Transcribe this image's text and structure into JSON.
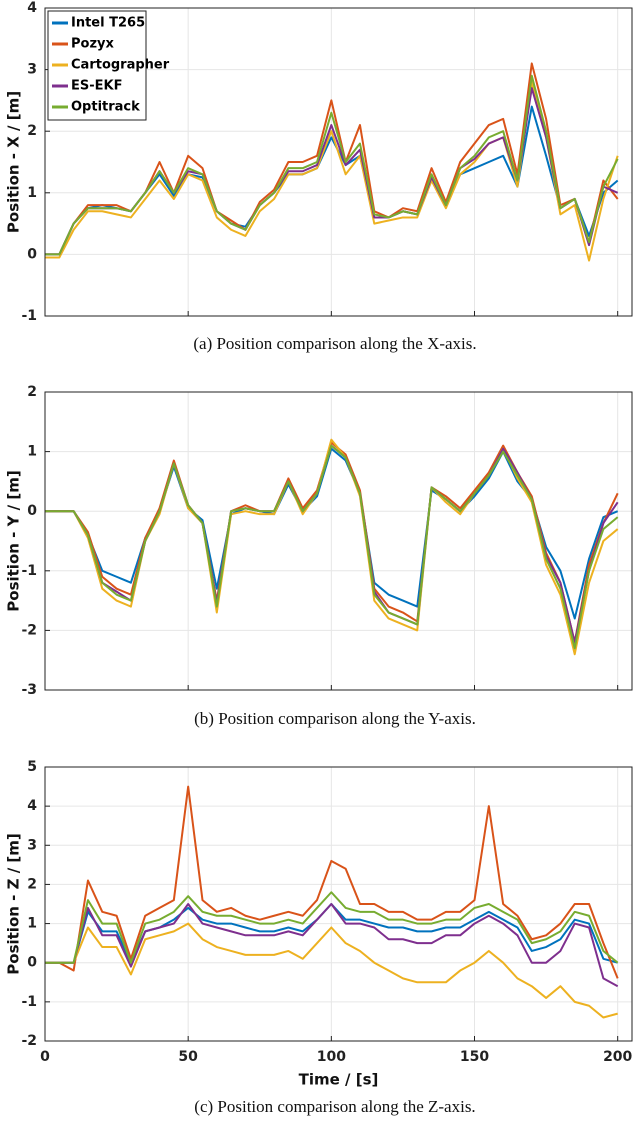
{
  "chart_data": [
    {
      "type": "line",
      "caption": "(a) Position comparison along the X-axis.",
      "ylabel": "Position - X / [m]",
      "x": [
        0,
        5,
        10,
        15,
        20,
        25,
        30,
        35,
        40,
        45,
        50,
        55,
        60,
        65,
        70,
        75,
        80,
        85,
        90,
        95,
        100,
        105,
        110,
        115,
        120,
        125,
        130,
        135,
        140,
        145,
        150,
        155,
        160,
        165,
        170,
        175,
        180,
        185,
        190,
        195,
        200
      ],
      "xlim": [
        0,
        205
      ],
      "xticks": [
        0,
        50,
        100,
        150,
        200
      ],
      "show_xtick_labels": false,
      "ylim": [
        -1,
        4
      ],
      "yticks": [
        -1,
        0,
        1,
        2,
        3,
        4
      ],
      "grid": true,
      "legend": "upper left",
      "series": [
        {
          "name": "Intel T265",
          "color": "#0072BD",
          "values": [
            0,
            0,
            0.5,
            0.75,
            0.8,
            0.75,
            0.7,
            1.0,
            1.3,
            0.95,
            1.3,
            1.25,
            0.7,
            0.5,
            0.45,
            0.8,
            1.0,
            1.3,
            1.3,
            1.4,
            1.9,
            1.45,
            1.6,
            0.6,
            0.6,
            0.7,
            0.65,
            1.2,
            0.8,
            1.3,
            1.4,
            1.5,
            1.6,
            1.1,
            2.4,
            1.6,
            0.75,
            0.9,
            0.3,
            1.0,
            1.2
          ]
        },
        {
          "name": "Pozyx",
          "color": "#D95319",
          "values": [
            0,
            0,
            0.5,
            0.8,
            0.8,
            0.8,
            0.7,
            1.0,
            1.5,
            1.0,
            1.6,
            1.4,
            0.7,
            0.55,
            0.4,
            0.85,
            1.05,
            1.5,
            1.5,
            1.6,
            2.5,
            1.5,
            2.1,
            0.7,
            0.6,
            0.75,
            0.7,
            1.4,
            0.85,
            1.5,
            1.8,
            2.1,
            2.2,
            1.3,
            3.1,
            2.2,
            0.8,
            0.9,
            0.2,
            1.2,
            0.9
          ]
        },
        {
          "name": "Cartographer",
          "color": "#EDB120",
          "values": [
            -0.05,
            -0.05,
            0.4,
            0.7,
            0.7,
            0.65,
            0.6,
            0.9,
            1.2,
            0.9,
            1.3,
            1.2,
            0.6,
            0.4,
            0.3,
            0.7,
            0.9,
            1.3,
            1.3,
            1.4,
            2.0,
            1.3,
            1.6,
            0.5,
            0.55,
            0.6,
            0.6,
            1.2,
            0.75,
            1.3,
            1.5,
            1.8,
            1.9,
            1.1,
            2.8,
            1.9,
            0.65,
            0.8,
            -0.1,
            0.9,
            1.6
          ]
        },
        {
          "name": "ES-EKF",
          "color": "#7E2F8E",
          "values": [
            0,
            0,
            0.5,
            0.75,
            0.75,
            0.75,
            0.7,
            1.0,
            1.35,
            1.0,
            1.35,
            1.3,
            0.7,
            0.5,
            0.4,
            0.8,
            1.0,
            1.35,
            1.35,
            1.45,
            2.1,
            1.45,
            1.7,
            0.6,
            0.6,
            0.7,
            0.65,
            1.25,
            0.8,
            1.4,
            1.55,
            1.8,
            1.9,
            1.2,
            2.7,
            1.9,
            0.75,
            0.9,
            0.15,
            1.1,
            1.0
          ]
        },
        {
          "name": "Optitrack",
          "color": "#77AC30",
          "values": [
            0,
            0,
            0.5,
            0.75,
            0.75,
            0.75,
            0.7,
            1.0,
            1.35,
            1.0,
            1.4,
            1.3,
            0.7,
            0.5,
            0.4,
            0.8,
            1.0,
            1.4,
            1.4,
            1.5,
            2.3,
            1.5,
            1.8,
            0.65,
            0.6,
            0.7,
            0.65,
            1.3,
            0.8,
            1.4,
            1.6,
            1.9,
            2.0,
            1.2,
            2.9,
            2.0,
            0.75,
            0.9,
            0.2,
            1.1,
            1.55
          ]
        }
      ]
    },
    {
      "type": "line",
      "caption": "(b) Position comparison along the Y-axis.",
      "ylabel": "Position - Y / [m]",
      "x": [
        0,
        5,
        10,
        15,
        20,
        25,
        30,
        35,
        40,
        45,
        50,
        55,
        60,
        65,
        70,
        75,
        80,
        85,
        90,
        95,
        100,
        105,
        110,
        115,
        120,
        125,
        130,
        135,
        140,
        145,
        150,
        155,
        160,
        165,
        170,
        175,
        180,
        185,
        190,
        195,
        200
      ],
      "xlim": [
        0,
        205
      ],
      "xticks": [
        0,
        50,
        100,
        150,
        200
      ],
      "show_xtick_labels": false,
      "ylim": [
        -3,
        2
      ],
      "yticks": [
        -3,
        -2,
        -1,
        0,
        1,
        2
      ],
      "grid": true,
      "series": [
        {
          "name": "Intel T265",
          "color": "#0072BD",
          "values": [
            0,
            0,
            0,
            -0.4,
            -1.0,
            -1.1,
            -1.2,
            -0.45,
            0.0,
            0.75,
            0.05,
            -0.15,
            -1.3,
            -0.05,
            0.05,
            0.0,
            -0.05,
            0.45,
            0.0,
            0.25,
            1.05,
            0.85,
            0.3,
            -1.2,
            -1.4,
            -1.5,
            -1.6,
            0.35,
            0.2,
            0.0,
            0.25,
            0.55,
            1.0,
            0.5,
            0.2,
            -0.6,
            -1.0,
            -1.8,
            -0.8,
            -0.1,
            0.0
          ]
        },
        {
          "name": "Pozyx",
          "color": "#D95319",
          "values": [
            0,
            0,
            0,
            -0.35,
            -1.1,
            -1.3,
            -1.4,
            -0.45,
            0.05,
            0.85,
            0.1,
            -0.2,
            -1.5,
            0.0,
            0.1,
            0.0,
            0.0,
            0.55,
            0.05,
            0.35,
            1.15,
            0.95,
            0.35,
            -1.3,
            -1.6,
            -1.7,
            -1.85,
            0.4,
            0.25,
            0.05,
            0.35,
            0.65,
            1.1,
            0.65,
            0.25,
            -0.7,
            -1.2,
            -2.2,
            -0.9,
            -0.2,
            0.3
          ]
        },
        {
          "name": "Cartographer",
          "color": "#EDB120",
          "values": [
            0,
            0,
            0,
            -0.45,
            -1.3,
            -1.5,
            -1.6,
            -0.5,
            -0.05,
            0.8,
            0.05,
            -0.2,
            -1.7,
            -0.05,
            0.0,
            -0.05,
            -0.05,
            0.5,
            -0.05,
            0.3,
            1.2,
            0.9,
            0.25,
            -1.5,
            -1.8,
            -1.9,
            -2.0,
            0.4,
            0.15,
            -0.05,
            0.3,
            0.6,
            1.05,
            0.55,
            0.15,
            -0.9,
            -1.4,
            -2.4,
            -1.2,
            -0.5,
            -0.3
          ]
        },
        {
          "name": "ES-EKF",
          "color": "#7E2F8E",
          "values": [
            0,
            0,
            0,
            -0.4,
            -1.2,
            -1.35,
            -1.5,
            -0.5,
            0.0,
            0.8,
            0.1,
            -0.2,
            -1.55,
            0.0,
            0.05,
            0.0,
            0.0,
            0.5,
            0.0,
            0.3,
            1.1,
            0.9,
            0.3,
            -1.35,
            -1.7,
            -1.8,
            -1.9,
            0.4,
            0.2,
            0.0,
            0.3,
            0.6,
            1.05,
            0.65,
            0.2,
            -0.75,
            -1.2,
            -2.2,
            -1.0,
            -0.2,
            0.15
          ]
        },
        {
          "name": "Optitrack",
          "color": "#77AC30",
          "values": [
            0,
            0,
            0,
            -0.4,
            -1.2,
            -1.4,
            -1.5,
            -0.5,
            0.0,
            0.8,
            0.1,
            -0.2,
            -1.6,
            0.0,
            0.05,
            0.0,
            0.0,
            0.5,
            0.0,
            0.3,
            1.1,
            0.9,
            0.3,
            -1.4,
            -1.7,
            -1.8,
            -1.9,
            0.4,
            0.2,
            0.0,
            0.3,
            0.6,
            1.0,
            0.6,
            0.2,
            -0.8,
            -1.3,
            -2.3,
            -1.0,
            -0.3,
            -0.1
          ]
        }
      ]
    },
    {
      "type": "line",
      "caption": "(c) Position comparison along the Z-axis.",
      "ylabel": "Position - Z / [m]",
      "xlabel": "Time / [s]",
      "x": [
        0,
        5,
        10,
        15,
        20,
        25,
        30,
        35,
        40,
        45,
        50,
        55,
        60,
        65,
        70,
        75,
        80,
        85,
        90,
        95,
        100,
        105,
        110,
        115,
        120,
        125,
        130,
        135,
        140,
        145,
        150,
        155,
        160,
        165,
        170,
        175,
        180,
        185,
        190,
        195,
        200
      ],
      "xlim": [
        0,
        205
      ],
      "xticks": [
        0,
        50,
        100,
        150,
        200
      ],
      "show_xtick_labels": true,
      "ylim": [
        -2,
        5
      ],
      "yticks": [
        -2,
        -1,
        0,
        1,
        2,
        3,
        4,
        5
      ],
      "grid": true,
      "series": [
        {
          "name": "Intel T265",
          "color": "#0072BD",
          "values": [
            0,
            0,
            0,
            1.3,
            0.8,
            0.8,
            0.0,
            0.8,
            0.9,
            1.1,
            1.4,
            1.1,
            1.0,
            1.0,
            0.9,
            0.8,
            0.8,
            0.9,
            0.8,
            1.1,
            1.5,
            1.1,
            1.1,
            1.0,
            0.9,
            0.9,
            0.8,
            0.8,
            0.9,
            0.9,
            1.1,
            1.3,
            1.1,
            0.9,
            0.3,
            0.4,
            0.6,
            1.1,
            1.0,
            0.1,
            0.0
          ]
        },
        {
          "name": "Pozyx",
          "color": "#D95319",
          "values": [
            0,
            0,
            -0.2,
            2.1,
            1.3,
            1.2,
            0.1,
            1.2,
            1.4,
            1.6,
            4.5,
            1.6,
            1.3,
            1.4,
            1.2,
            1.1,
            1.2,
            1.3,
            1.2,
            1.6,
            2.6,
            2.4,
            1.5,
            1.5,
            1.3,
            1.3,
            1.1,
            1.1,
            1.3,
            1.3,
            1.6,
            4.0,
            1.5,
            1.2,
            0.6,
            0.7,
            1.0,
            1.5,
            1.5,
            0.5,
            -0.4
          ]
        },
        {
          "name": "Cartographer",
          "color": "#EDB120",
          "values": [
            0,
            0,
            0,
            0.9,
            0.4,
            0.4,
            -0.3,
            0.6,
            0.7,
            0.8,
            1.0,
            0.6,
            0.4,
            0.3,
            0.2,
            0.2,
            0.2,
            0.3,
            0.1,
            0.5,
            0.9,
            0.5,
            0.3,
            0.0,
            -0.2,
            -0.4,
            -0.5,
            -0.5,
            -0.5,
            -0.2,
            0.0,
            0.3,
            0.0,
            -0.4,
            -0.6,
            -0.9,
            -0.6,
            -1.0,
            -1.1,
            -1.4,
            -1.3
          ]
        },
        {
          "name": "ES-EKF",
          "color": "#7E2F8E",
          "values": [
            0,
            0,
            0,
            1.4,
            0.7,
            0.7,
            -0.1,
            0.8,
            0.9,
            1.0,
            1.5,
            1.0,
            0.9,
            0.8,
            0.7,
            0.7,
            0.7,
            0.8,
            0.7,
            1.1,
            1.5,
            1.0,
            1.0,
            0.9,
            0.6,
            0.6,
            0.5,
            0.5,
            0.7,
            0.7,
            1.0,
            1.2,
            1.0,
            0.7,
            0.0,
            0.0,
            0.3,
            1.0,
            0.9,
            -0.4,
            -0.6
          ]
        },
        {
          "name": "Optitrack",
          "color": "#77AC30",
          "values": [
            0,
            0,
            0,
            1.6,
            1.0,
            1.0,
            0.0,
            1.0,
            1.1,
            1.3,
            1.7,
            1.3,
            1.2,
            1.2,
            1.1,
            1.0,
            1.0,
            1.1,
            1.0,
            1.4,
            1.8,
            1.4,
            1.3,
            1.3,
            1.1,
            1.1,
            1.0,
            1.0,
            1.1,
            1.1,
            1.4,
            1.5,
            1.3,
            1.1,
            0.5,
            0.6,
            0.8,
            1.3,
            1.2,
            0.3,
            0.0
          ]
        }
      ]
    }
  ]
}
